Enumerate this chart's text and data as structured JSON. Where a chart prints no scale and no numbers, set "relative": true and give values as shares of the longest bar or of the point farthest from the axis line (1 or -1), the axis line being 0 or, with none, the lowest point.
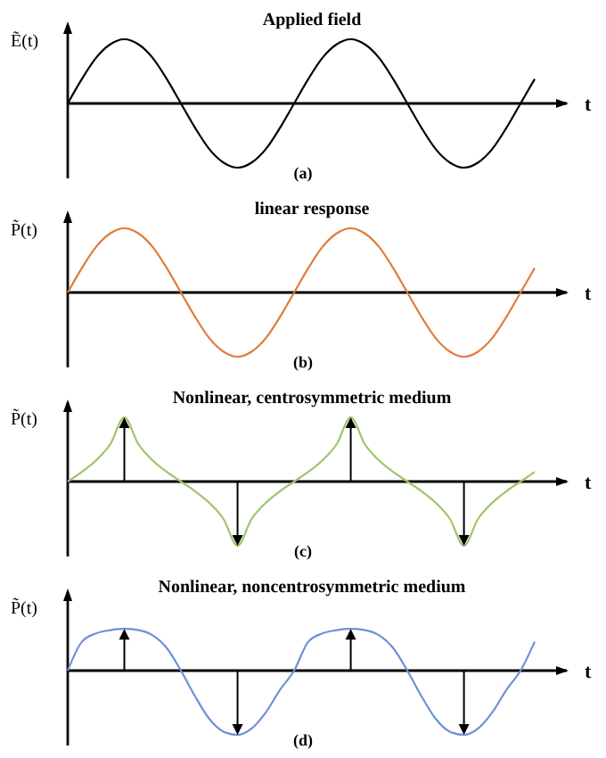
{
  "chart_data": [
    {
      "type": "line",
      "relative": true,
      "title": "Applied field",
      "ylabel": "Ẽ(t)",
      "xlabel": "t",
      "annotations": [
        "(a)"
      ],
      "categories": [
        null,
        null,
        null,
        null,
        null,
        null,
        null,
        null,
        null,
        null,
        null,
        null,
        null,
        null,
        null,
        null,
        null,
        null,
        null,
        null,
        null,
        null,
        null,
        null,
        null,
        null,
        null,
        null,
        null,
        null,
        null,
        null,
        null,
        null
      ],
      "series": [
        {
          "color": "#000000",
          "values": [
            0,
            0.38,
            0.71,
            0.92,
            1,
            0.92,
            0.71,
            0.38,
            0,
            -0.38,
            -0.71,
            -0.92,
            -1,
            -0.92,
            -0.71,
            -0.38,
            0,
            0.38,
            0.71,
            0.92,
            1,
            0.92,
            0.71,
            0.38,
            0,
            -0.38,
            -0.71,
            -0.92,
            -1,
            -0.92,
            -0.71,
            -0.38,
            0,
            0.38
          ]
        }
      ]
    },
    {
      "type": "line",
      "relative": true,
      "title": "linear response",
      "ylabel": "P̃(t)",
      "xlabel": "t",
      "annotations": [
        "(b)"
      ],
      "categories": [
        null,
        null,
        null,
        null,
        null,
        null,
        null,
        null,
        null,
        null,
        null,
        null,
        null,
        null,
        null,
        null,
        null,
        null,
        null,
        null,
        null,
        null,
        null,
        null,
        null,
        null,
        null,
        null,
        null,
        null,
        null,
        null,
        null,
        null
      ],
      "series": [
        {
          "color": "#e07b39",
          "values": [
            0,
            0.38,
            0.71,
            0.92,
            1,
            0.92,
            0.71,
            0.38,
            0,
            -0.38,
            -0.71,
            -0.92,
            -1,
            -0.92,
            -0.71,
            -0.38,
            0,
            0.38,
            0.71,
            0.92,
            1,
            0.92,
            0.71,
            0.38,
            0,
            -0.38,
            -0.71,
            -0.92,
            -1,
            -0.92,
            -0.71,
            -0.38,
            0,
            0.38
          ]
        }
      ]
    },
    {
      "type": "line",
      "relative": true,
      "title": "Nonlinear, centrosymmetric medium",
      "ylabel": "P̃(t)",
      "xlabel": "t",
      "annotations": [
        "(c)"
      ],
      "categories": [
        null,
        null,
        null,
        null,
        null,
        null,
        null,
        null,
        null,
        null,
        null,
        null,
        null,
        null,
        null,
        null,
        null,
        null,
        null,
        null,
        null,
        null,
        null,
        null,
        null,
        null,
        null,
        null,
        null,
        null,
        null,
        null,
        null,
        null
      ],
      "series": [
        {
          "color": "#9fc46a",
          "values": [
            0,
            0.15,
            0.33,
            0.58,
            1,
            0.58,
            0.33,
            0.15,
            0,
            -0.15,
            -0.33,
            -0.58,
            -1,
            -0.58,
            -0.33,
            -0.15,
            0,
            0.15,
            0.33,
            0.58,
            1,
            0.58,
            0.33,
            0.15,
            0,
            -0.15,
            -0.33,
            -0.58,
            -1,
            -0.58,
            -0.33,
            -0.15,
            0,
            0.15
          ]
        }
      ]
    },
    {
      "type": "line",
      "relative": true,
      "title": "Nonlinear, noncentrosymmetric medium",
      "ylabel": "P̃(t)",
      "xlabel": "t",
      "annotations": [
        "(d)"
      ],
      "categories": [
        null,
        null,
        null,
        null,
        null,
        null,
        null,
        null,
        null,
        null,
        null,
        null,
        null,
        null,
        null,
        null,
        null,
        null,
        null,
        null,
        null,
        null,
        null,
        null,
        null,
        null,
        null,
        null,
        null,
        null,
        null,
        null,
        null,
        null
      ],
      "series": [
        {
          "color": "#6f8fd8",
          "values": [
            0,
            0.45,
            0.58,
            0.63,
            0.65,
            0.63,
            0.55,
            0.35,
            0,
            -0.4,
            -0.75,
            -0.95,
            -1,
            -0.9,
            -0.65,
            -0.3,
            0,
            0.45,
            0.58,
            0.63,
            0.65,
            0.63,
            0.55,
            0.35,
            0,
            -0.4,
            -0.75,
            -0.95,
            -1,
            -0.9,
            -0.65,
            -0.3,
            0,
            0.45
          ]
        }
      ]
    }
  ]
}
